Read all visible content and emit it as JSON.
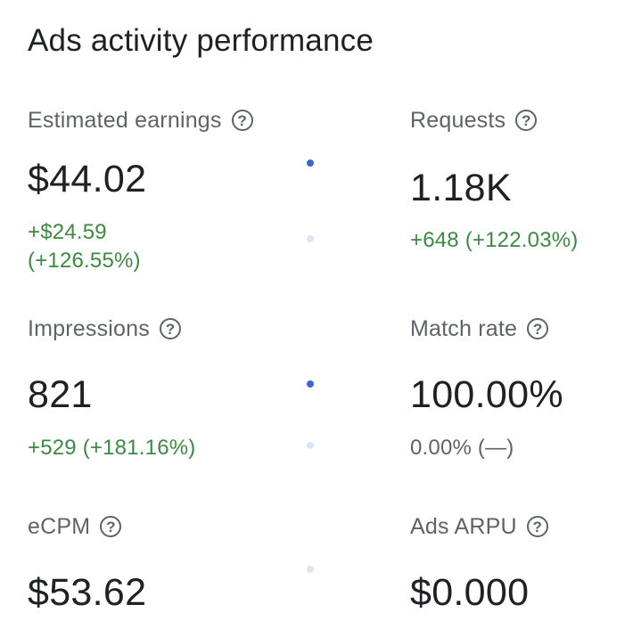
{
  "title": "Ads activity performance",
  "metrics": [
    {
      "label": "Estimated earnings",
      "value": "$44.02",
      "change_line1": "+$24.59",
      "change_line2": "(+126.55%)"
    },
    {
      "label": "Requests",
      "value": "1.18K",
      "change": "+648 (+122.03%)"
    },
    {
      "label": "Impressions",
      "value": "821",
      "change": "+529 (+181.16%)"
    },
    {
      "label": "Match rate",
      "value": "100.00%",
      "change": "0.00% (—)"
    },
    {
      "label": "eCPM",
      "value": "$53.62"
    },
    {
      "label": "Ads ARPU",
      "value": "$0.000"
    }
  ],
  "help_icon_glyph": "?",
  "colors": {
    "positive_change": "#3c8a3f",
    "neutral_change": "#5f6368",
    "active_dot": "#3b67c9",
    "inactive_dot": "#dbe6f5"
  }
}
